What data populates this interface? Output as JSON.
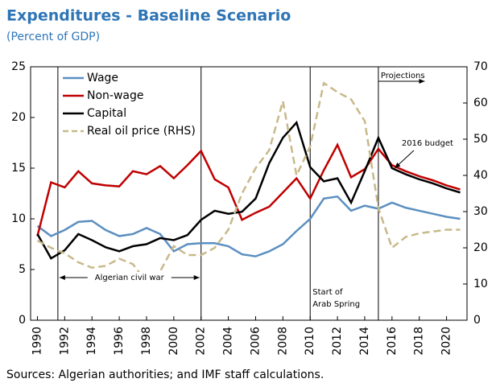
{
  "chart_data": {
    "type": "line",
    "title": "Expenditures - Baseline Scenario",
    "subtitle": "(Percent of GDP)",
    "source": "Sources: Algerian authorities; and IMF staff calculations.",
    "x": [
      1990,
      1991,
      1992,
      1993,
      1994,
      1995,
      1996,
      1997,
      1998,
      1999,
      2000,
      2001,
      2002,
      2003,
      2004,
      2005,
      2006,
      2007,
      2008,
      2009,
      2010,
      2011,
      2012,
      2013,
      2014,
      2015,
      2016,
      2017,
      2018,
      2019,
      2020,
      2021
    ],
    "xlim": [
      1989.5,
      2021.5
    ],
    "xticks": [
      1990,
      1992,
      1994,
      1996,
      1998,
      2000,
      2002,
      2004,
      2006,
      2008,
      2010,
      2012,
      2014,
      2016,
      2018,
      2020
    ],
    "ylim": [
      0,
      25
    ],
    "yticks": [
      0,
      5,
      10,
      15,
      20,
      25
    ],
    "y2lim": [
      0,
      70
    ],
    "y2ticks": [
      0,
      10,
      20,
      30,
      40,
      50,
      60,
      70
    ],
    "legend": "upper left",
    "series": [
      {
        "name": "Wage",
        "color": "#5b8fc0",
        "values": [
          9.3,
          8.3,
          8.9,
          9.7,
          9.8,
          8.9,
          8.3,
          8.5,
          9.1,
          8.5,
          6.8,
          7.5,
          7.6,
          7.6,
          7.3,
          6.5,
          6.3,
          6.8,
          7.5,
          8.8,
          10.0,
          12.0,
          12.2,
          10.8,
          11.3,
          11.0,
          11.6,
          11.1,
          10.8,
          10.5,
          10.2,
          10.0
        ]
      },
      {
        "name": "Non-wage",
        "color": "#c00000",
        "values": [
          8.3,
          13.6,
          13.1,
          14.7,
          13.5,
          13.3,
          13.2,
          14.7,
          14.4,
          15.2,
          14.0,
          15.3,
          16.7,
          13.9,
          13.1,
          9.9,
          10.6,
          11.2,
          12.6,
          14.0,
          12.0,
          14.8,
          17.3,
          14.1,
          14.9,
          16.9,
          15.3,
          14.7,
          14.2,
          13.8,
          13.3,
          12.9
        ]
      },
      {
        "name": "Capital",
        "color": "#000000",
        "values": [
          8.5,
          6.1,
          6.9,
          8.5,
          7.9,
          7.2,
          6.8,
          7.3,
          7.5,
          8.1,
          7.9,
          8.4,
          9.9,
          10.8,
          10.5,
          10.7,
          12.0,
          15.5,
          18.0,
          19.5,
          15.1,
          13.7,
          14.0,
          11.6,
          14.7,
          18.0,
          15.0,
          14.4,
          13.9,
          13.5,
          13.0,
          12.6
        ]
      },
      {
        "name": "Real oil price (RHS)",
        "color": "#c8b98a",
        "dashed": true,
        "axis": "y2",
        "values": [
          22,
          20,
          18.5,
          16,
          14.5,
          15,
          17,
          15.5,
          10.5,
          13.5,
          20.5,
          18,
          18,
          20,
          25,
          35,
          42,
          47,
          60.5,
          40,
          48,
          65.5,
          63,
          61,
          55,
          31,
          20,
          23,
          24,
          24.5,
          25,
          25
        ]
      }
    ],
    "vlines": [
      1991.5,
      2002,
      2010,
      2015
    ],
    "annotations": [
      "Algerian civil war",
      [
        "Start of",
        "Arab Spring"
      ],
      "Projections",
      "2016 budget"
    ]
  }
}
